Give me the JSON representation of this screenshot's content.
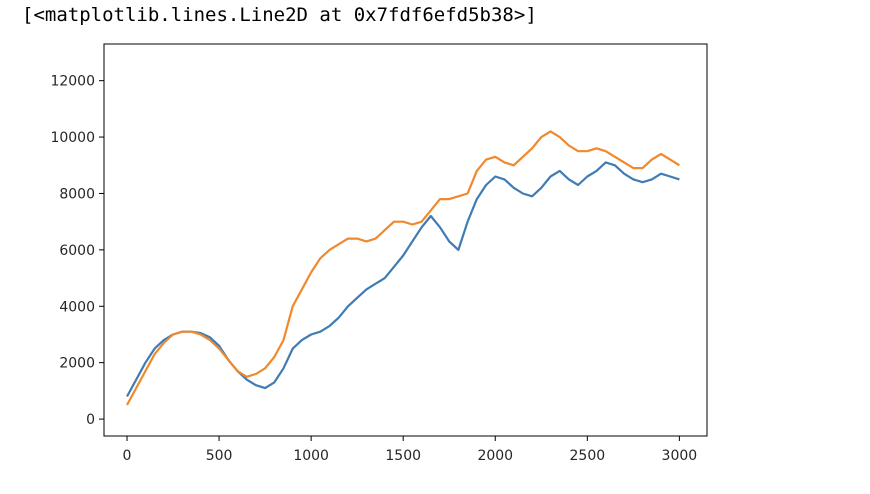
{
  "cell_output": {
    "repr_text": "[<matplotlib.lines.Line2D at 0x7fdf6efd5b38>]"
  },
  "chart_data": {
    "type": "line",
    "title": "",
    "xlabel": "",
    "ylabel": "",
    "xlim": [
      -125,
      3150
    ],
    "ylim": [
      -600,
      13300
    ],
    "x_ticks": [
      0,
      500,
      1000,
      1500,
      2000,
      2500,
      3000
    ],
    "y_ticks": [
      0,
      2000,
      4000,
      6000,
      8000,
      10000,
      12000
    ],
    "grid": false,
    "legend": "none",
    "series": [
      {
        "color": "#3f7bb5",
        "x": [
          0,
          50,
          100,
          150,
          200,
          250,
          300,
          350,
          400,
          450,
          500,
          550,
          600,
          650,
          700,
          750,
          800,
          850,
          900,
          950,
          1000,
          1050,
          1100,
          1150,
          1200,
          1250,
          1300,
          1350,
          1400,
          1450,
          1500,
          1550,
          1600,
          1650,
          1700,
          1750,
          1800,
          1850,
          1900,
          1950,
          2000,
          2050,
          2100,
          2150,
          2200,
          2250,
          2300,
          2350,
          2400,
          2450,
          2500,
          2550,
          2600,
          2650,
          2700,
          2750,
          2800,
          2850,
          2900,
          2950,
          3000
        ],
        "values": [
          800,
          1400,
          2000,
          2500,
          2800,
          3000,
          3100,
          3100,
          3050,
          2900,
          2600,
          2100,
          1700,
          1400,
          1200,
          1100,
          1300,
          1800,
          2500,
          2800,
          3000,
          3100,
          3300,
          3600,
          4000,
          4300,
          4600,
          4800,
          5000,
          5400,
          5800,
          6300,
          6800,
          7200,
          6800,
          6300,
          6000,
          7000,
          7800,
          8300,
          8600,
          8500,
          8200,
          8000,
          7900,
          8200,
          8600,
          8800,
          8500,
          8300,
          8600,
          8800,
          9100,
          9000,
          8700,
          8500,
          8400,
          8500,
          8700,
          8600,
          8500
        ]
      },
      {
        "color": "#f0892b",
        "x": [
          0,
          50,
          100,
          150,
          200,
          250,
          300,
          350,
          400,
          450,
          500,
          550,
          600,
          650,
          700,
          750,
          800,
          850,
          900,
          950,
          1000,
          1050,
          1100,
          1150,
          1200,
          1250,
          1300,
          1350,
          1400,
          1450,
          1500,
          1550,
          1600,
          1650,
          1700,
          1750,
          1800,
          1850,
          1900,
          1950,
          2000,
          2050,
          2100,
          2150,
          2200,
          2250,
          2300,
          2350,
          2400,
          2450,
          2500,
          2550,
          2600,
          2650,
          2700,
          2750,
          2800,
          2850,
          2900,
          2950,
          3000
        ],
        "values": [
          500,
          1100,
          1700,
          2300,
          2700,
          3000,
          3100,
          3100,
          3000,
          2800,
          2500,
          2100,
          1700,
          1500,
          1600,
          1800,
          2200,
          2800,
          4000,
          4600,
          5200,
          5700,
          6000,
          6200,
          6400,
          6400,
          6300,
          6400,
          6700,
          7000,
          7000,
          6900,
          7000,
          7400,
          7800,
          7800,
          7900,
          8000,
          8800,
          9200,
          9300,
          9100,
          9000,
          9300,
          9600,
          10000,
          10200,
          10000,
          9700,
          9500,
          9500,
          9600,
          9500,
          9300,
          9100,
          8900,
          8900,
          9200,
          9400,
          9200,
          9000
        ]
      }
    ]
  }
}
